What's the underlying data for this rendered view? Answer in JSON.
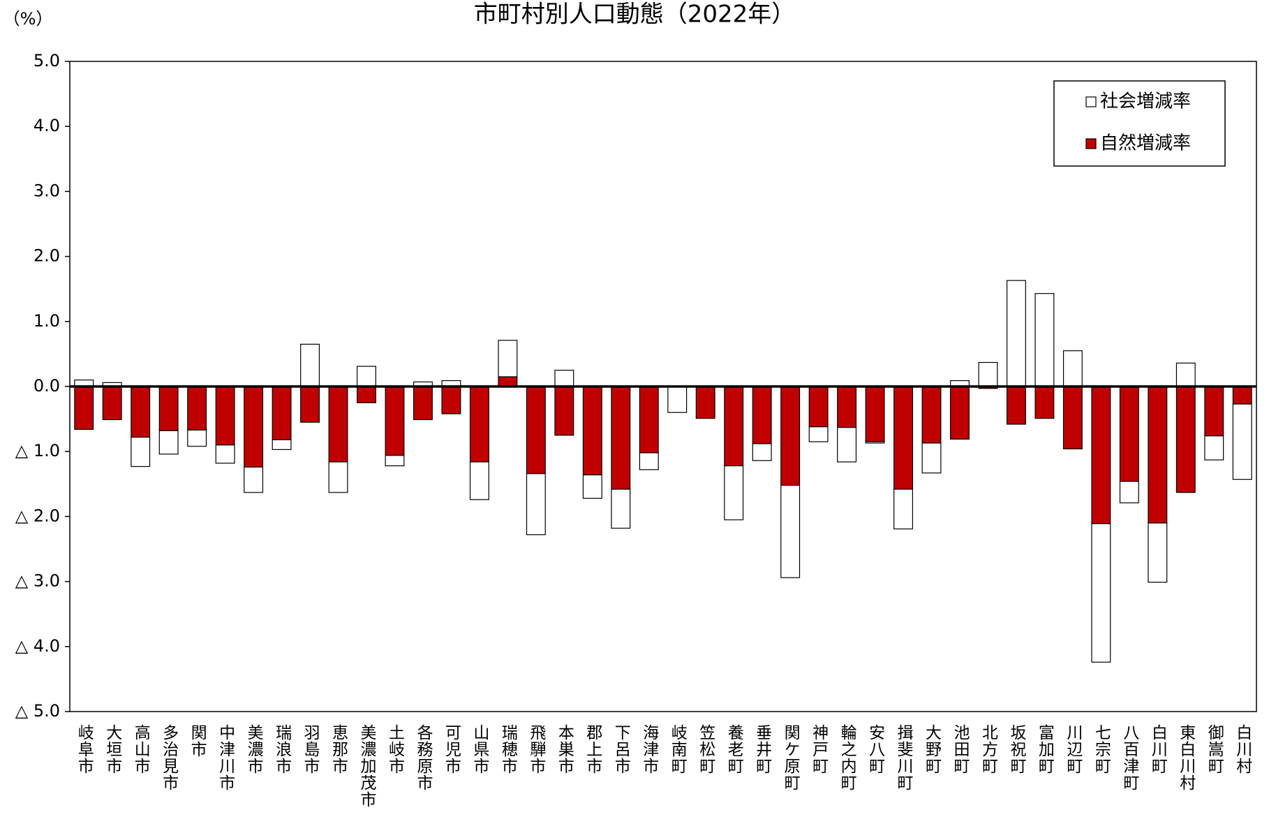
{
  "chart_data": {
    "type": "stacked_bar",
    "title": "市町村別人口動態（2022年）",
    "y_label": "（%）",
    "categories": [
      "岐阜市",
      "大垣市",
      "高山市",
      "多治見市",
      "関市",
      "中津川市",
      "美濃市",
      "瑞浪市",
      "羽島市",
      "恵那市",
      "美濃加茂市",
      "土岐市",
      "各務原市",
      "可児市",
      "山県市",
      "瑞穂市",
      "飛騨市",
      "本巣市",
      "郡上市",
      "下呂市",
      "海津市",
      "岐南町",
      "笠松町",
      "養老町",
      "垂井町",
      "関ケ原町",
      "神戸町",
      "輪之内町",
      "安八町",
      "揖斐川町",
      "大野町",
      "池田町",
      "北方町",
      "坂祝町",
      "富加町",
      "川辺町",
      "七宗町",
      "八百津町",
      "白川町",
      "東白川村",
      "御嵩町",
      "白川村"
    ],
    "series": [
      {
        "name": "社会増減率",
        "color": "#ffffff",
        "values": [
          0.1,
          0.06,
          -0.45,
          -0.36,
          -0.25,
          -0.28,
          -0.39,
          -0.15,
          0.65,
          -0.47,
          0.31,
          -0.16,
          0.07,
          0.09,
          -0.58,
          0.56,
          -0.94,
          0.25,
          -0.36,
          -0.6,
          -0.26,
          -0.4,
          0,
          -0.83,
          -0.26,
          -1.42,
          -0.23,
          -0.53,
          -0.02,
          -0.61,
          -0.46,
          0.09,
          0.37,
          1.63,
          1.43,
          0.55,
          -2.13,
          -0.33,
          -0.91,
          0.36,
          -0.37,
          -1.16
        ]
      },
      {
        "name": "自然増減率",
        "color": "#c00000",
        "values": [
          -0.66,
          -0.51,
          -0.78,
          -0.68,
          -0.67,
          -0.9,
          -1.24,
          -0.82,
          -0.55,
          -1.16,
          -0.25,
          -1.06,
          -0.51,
          -0.42,
          -1.16,
          0.15,
          -1.34,
          -0.75,
          -1.36,
          -1.58,
          -1.02,
          0,
          -0.49,
          -1.22,
          -0.88,
          -1.52,
          -0.62,
          -0.63,
          -0.85,
          -1.58,
          -0.87,
          -0.81,
          -0.03,
          -0.58,
          -0.49,
          -0.96,
          -2.11,
          -1.46,
          -2.1,
          -1.63,
          -0.76,
          -0.27
        ]
      }
    ],
    "ylim": [
      -5,
      5
    ],
    "yticks": [
      {
        "value": 5,
        "label": "5.0"
      },
      {
        "value": 4,
        "label": "4.0"
      },
      {
        "value": 3,
        "label": "3.0"
      },
      {
        "value": 2,
        "label": "2.0"
      },
      {
        "value": 1,
        "label": "1.0"
      },
      {
        "value": 0,
        "label": "0.0"
      },
      {
        "value": -1,
        "label": "△ 1.0"
      },
      {
        "value": -2,
        "label": "△ 2.0"
      },
      {
        "value": -3,
        "label": "△ 3.0"
      },
      {
        "value": -4,
        "label": "△ 4.0"
      },
      {
        "value": -5,
        "label": "△ 5.0"
      }
    ],
    "legend": "top-right"
  }
}
